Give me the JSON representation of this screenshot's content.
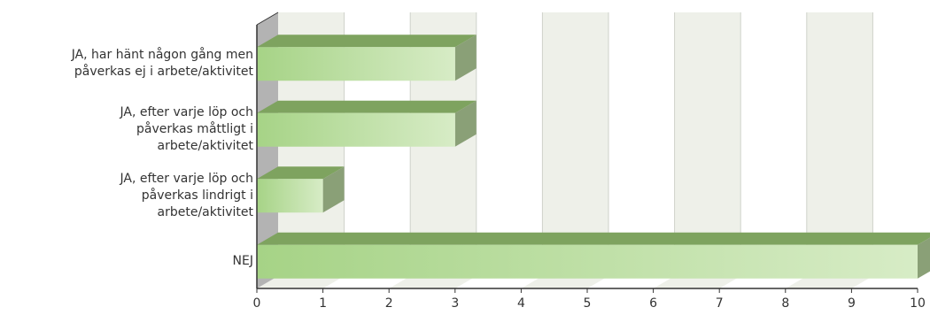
{
  "chart_data": {
    "type": "bar",
    "orientation": "horizontal",
    "style": "3d",
    "categories": [
      [
        "JA, har hänt någon gång men",
        "påverkas ej i arbete/aktivitet"
      ],
      [
        "JA, efter varje löp och",
        "påverkas måttligt i",
        "arbete/aktivitet"
      ],
      [
        "JA, efter varje löp och",
        "påverkas lindrigt i",
        "arbete/aktivitet"
      ],
      [
        "NEJ"
      ]
    ],
    "values": [
      3,
      3,
      1,
      10
    ],
    "xlim": [
      0,
      10
    ],
    "xticks": [
      "0",
      "1",
      "2",
      "3",
      "4",
      "5",
      "6",
      "7",
      "8",
      "9",
      "10"
    ],
    "title": "",
    "xlabel": "",
    "ylabel": "",
    "grid": "vertical-alternating-bands",
    "legend": "none",
    "colors": {
      "bar_light": "#d7ecc6",
      "bar_dark": "#a6d386",
      "bar_top": "#7ea35f",
      "bar_side": "#8aa077",
      "band": "#eef0e9",
      "wall": "#b3b3b3",
      "axis": "#333333"
    }
  }
}
